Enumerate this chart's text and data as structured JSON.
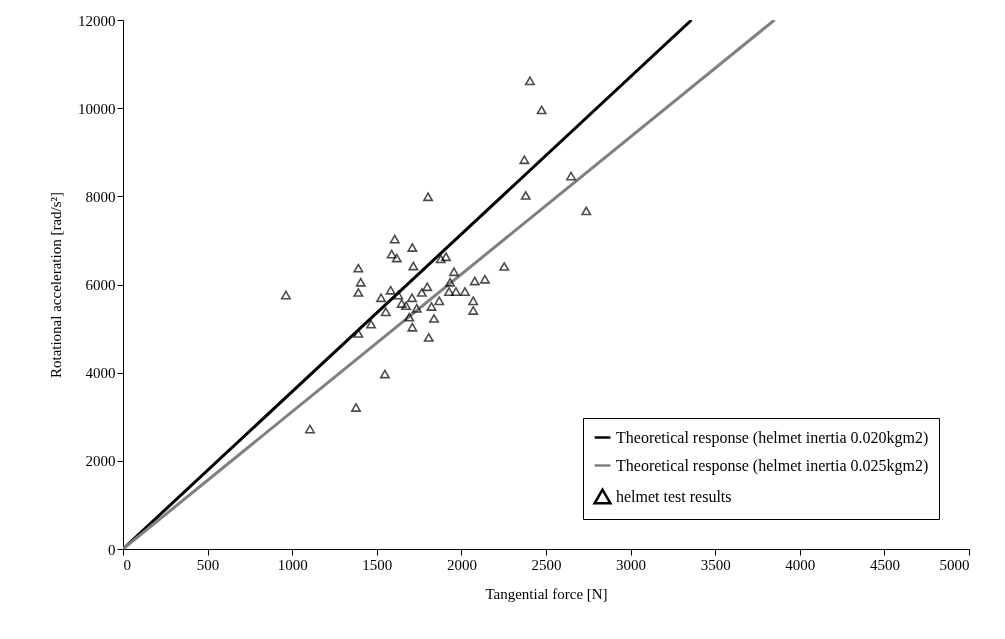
{
  "chart_data": {
    "type": "scatter",
    "xlabel": "Tangential force [N]",
    "ylabel": "Rotational acceleration [rad/s²]",
    "xlim": [
      0,
      5000
    ],
    "xticks": [
      0,
      500,
      1000,
      1500,
      2000,
      2500,
      3000,
      3500,
      4000,
      4500,
      5000
    ],
    "ylim": [
      0,
      12000
    ],
    "yticks": [
      0,
      2000,
      4000,
      6000,
      8000,
      10000,
      12000
    ],
    "grid": false,
    "legend": "bottom right",
    "series": [
      {
        "name": "Theoretical response (helmet inertia 0.020kgm2)",
        "type": "line",
        "marker": "none",
        "color": "#000000",
        "x": [
          0,
          3360
        ],
        "values": [
          0,
          12000
        ]
      },
      {
        "name": "Theoretical response (helmet inertia 0.025kgm2)",
        "type": "line",
        "marker": "none",
        "color": "#808080",
        "x": [
          0,
          3850
        ],
        "values": [
          0,
          12000
        ]
      },
      {
        "name": "helmet test results",
        "marker": "triangle",
        "color": "#000000",
        "x": [
          963,
          1391,
          1405,
          1391,
          1606,
          1588,
          1618,
          1710,
          1716,
          1525,
          1582,
          1627,
          1647,
          1673,
          1708,
          1736,
          1766,
          1798,
          1823,
          1869,
          1692,
          1710,
          1838,
          1807,
          1553,
          1466,
          1391,
          1548,
          1377,
          1105,
          1878,
          1909,
          1956,
          1933,
          1927,
          1968,
          2021,
          2079,
          2139,
          2070,
          2070,
          2253,
          2405,
          2474,
          2372,
          2648,
          2380,
          2738,
          1803
        ],
        "values": [
          5760,
          6370,
          6050,
          5820,
          7030,
          6690,
          6600,
          6840,
          6420,
          5700,
          5870,
          5760,
          5570,
          5520,
          5700,
          5460,
          5820,
          5950,
          5500,
          5630,
          5260,
          5030,
          5230,
          4800,
          5380,
          5100,
          4890,
          3970,
          3210,
          2720,
          6580,
          6630,
          6290,
          6050,
          5840,
          5840,
          5840,
          6080,
          6120,
          5630,
          5410,
          6410,
          10620,
          9960,
          8830,
          8460,
          8020,
          7670,
          7990
        ]
      }
    ]
  }
}
